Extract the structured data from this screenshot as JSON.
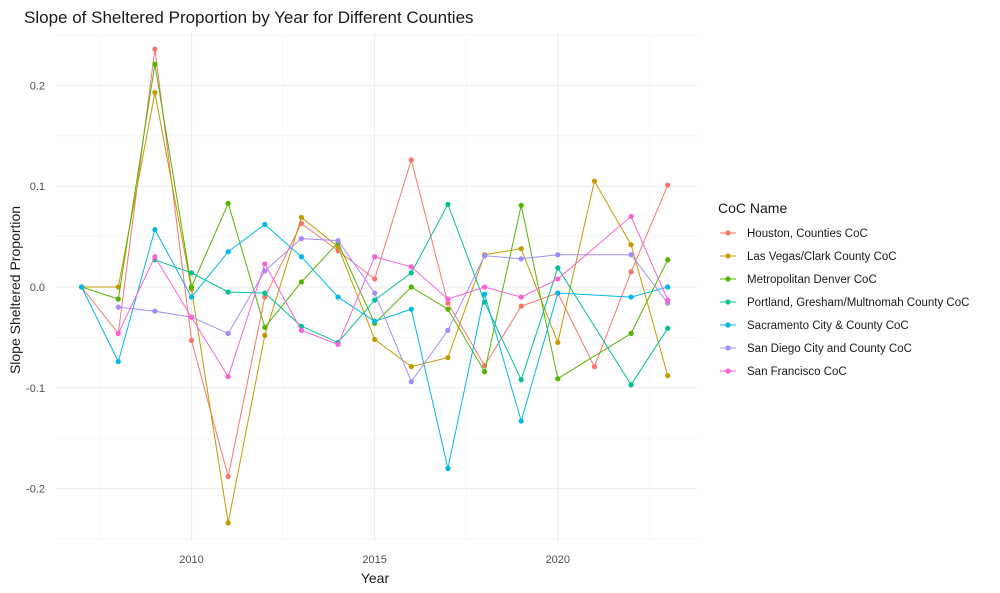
{
  "chart_data": {
    "type": "line",
    "title": "Slope of Sheltered Proportion by Year for Different Counties",
    "xlabel": "Year",
    "ylabel": "Slope Sheltered Proportion",
    "xlim": [
      2006.3,
      2023.8
    ],
    "ylim": [
      -0.252,
      0.252
    ],
    "x_ticks": [
      2010,
      2015,
      2020
    ],
    "y_ticks": [
      -0.2,
      -0.1,
      0.0,
      0.1,
      0.2
    ],
    "y_tick_labels": [
      "-0.2",
      "-0.1",
      "0.0",
      "0.1",
      "0.2"
    ],
    "grid": true,
    "legend_title": "CoC Name",
    "legend_position": "right",
    "series": [
      {
        "name": "Houston, Counties CoC",
        "color": "#F8766D",
        "x": [
          2007,
          2008,
          2009,
          2010,
          2011,
          2012,
          2013,
          2014,
          2015,
          2016,
          2017,
          2018,
          2019,
          2020,
          2021,
          2022,
          2023
        ],
        "values": [
          0.0,
          -0.046,
          0.236,
          -0.053,
          -0.188,
          -0.01,
          0.063,
          0.036,
          0.008,
          0.126,
          -0.016,
          -0.078,
          -0.019,
          -0.006,
          -0.079,
          0.015,
          0.101
        ]
      },
      {
        "name": "Las Vegas/Clark County CoC",
        "color": "#C49A00",
        "x": [
          2007,
          2008,
          2009,
          2010,
          2011,
          2012,
          2013,
          2014,
          2015,
          2016,
          2017,
          2018,
          2019,
          2020,
          2021,
          2022,
          2023
        ],
        "values": [
          0.0,
          0.0,
          0.193,
          -0.002,
          -0.234,
          -0.048,
          0.069,
          0.04,
          -0.052,
          -0.079,
          -0.07,
          0.032,
          0.038,
          -0.055,
          0.105,
          0.042,
          -0.088
        ]
      },
      {
        "name": "Metropolitan Denver CoC",
        "color": "#53B400",
        "x": [
          2007,
          2008,
          2009,
          2010,
          2011,
          2012,
          2013,
          2014,
          2015,
          2016,
          2017,
          2018,
          2019,
          2020,
          2022,
          2023
        ],
        "values": [
          0.0,
          -0.012,
          0.221,
          0.0,
          0.083,
          -0.04,
          0.005,
          0.044,
          -0.036,
          0.0,
          -0.022,
          -0.084,
          0.081,
          -0.091,
          -0.046,
          0.027
        ]
      },
      {
        "name": "Portland, Gresham/Multnomah County CoC",
        "color": "#00C094",
        "x": [
          2009,
          2010,
          2011,
          2012,
          2013,
          2014,
          2015,
          2016,
          2017,
          2018,
          2019,
          2020,
          2022,
          2023
        ],
        "values": [
          0.027,
          0.014,
          -0.005,
          -0.006,
          -0.039,
          -0.055,
          -0.013,
          0.014,
          0.082,
          -0.015,
          -0.092,
          0.019,
          -0.097,
          -0.041
        ]
      },
      {
        "name": "Sacramento City & County CoC",
        "color": "#00B6EB",
        "x": [
          2007,
          2008,
          2009,
          2010,
          2011,
          2012,
          2013,
          2014,
          2015,
          2016,
          2017,
          2018,
          2019,
          2020,
          2022,
          2023
        ],
        "values": [
          0.0,
          -0.074,
          0.057,
          -0.01,
          0.035,
          0.062,
          0.03,
          -0.01,
          -0.034,
          -0.022,
          -0.18,
          -0.007,
          -0.133,
          -0.006,
          -0.01,
          0.0
        ]
      },
      {
        "name": "San Diego City and County CoC",
        "color": "#A58AFF",
        "x": [
          2008,
          2009,
          2010,
          2011,
          2012,
          2013,
          2014,
          2015,
          2016,
          2017,
          2018,
          2019,
          2020,
          2022,
          2023
        ],
        "values": [
          -0.02,
          -0.024,
          -0.03,
          -0.046,
          0.016,
          0.048,
          0.046,
          -0.006,
          -0.094,
          -0.043,
          0.031,
          0.028,
          0.032,
          0.032,
          -0.016
        ]
      },
      {
        "name": "San Francisco CoC",
        "color": "#FB61D7",
        "x": [
          2008,
          2009,
          2010,
          2011,
          2012,
          2013,
          2014,
          2015,
          2016,
          2017,
          2018,
          2019,
          2020,
          2022,
          2023
        ],
        "values": [
          -0.046,
          0.03,
          -0.03,
          -0.089,
          0.023,
          -0.043,
          -0.057,
          0.03,
          0.02,
          -0.012,
          0.0,
          -0.01,
          0.008,
          0.07,
          -0.013
        ]
      }
    ]
  }
}
